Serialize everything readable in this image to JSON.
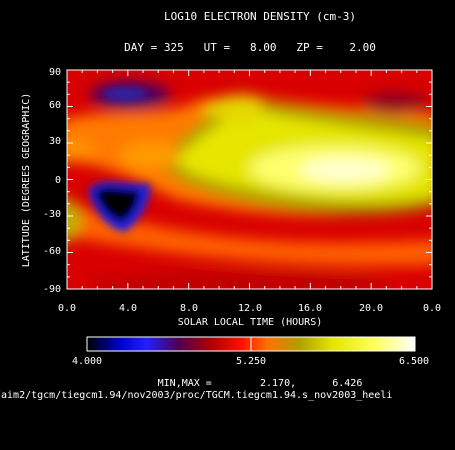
{
  "chart_data": {
    "type": "heatmap",
    "title": "LOG10 ELECTRON DENSITY (cm-3)",
    "subtitle": "DAY = 325   UT =   8.00   ZP =    2.00",
    "xlabel": "SOLAR LOCAL TIME (HOURS)",
    "ylabel": "LATITUDE (DEGREES GEOGRAPHIC)",
    "xlim": [
      0,
      24
    ],
    "ylim": [
      -90,
      90
    ],
    "x_ticks": [
      "0.0",
      "4.0",
      "8.0",
      "12.0",
      "16.0",
      "20.0",
      "0.0"
    ],
    "y_ticks": [
      "-90",
      "-60",
      "-30",
      "0",
      "30",
      "60",
      "90"
    ],
    "colorbar": {
      "min_label": "4.000",
      "mid_label": "5.250",
      "max_label": "6.500",
      "range": [
        4.0,
        6.5
      ],
      "stops": [
        "#000000",
        "#0000cc",
        "#2020ff",
        "#500050",
        "#b00000",
        "#ff1000",
        "#ff7000",
        "#b0a000",
        "#e6e600",
        "#ffff60",
        "#ffffff"
      ]
    },
    "min_max_text": "MIN,MAX =        2.170,      6.426",
    "data_min": 2.17,
    "data_max": 6.426,
    "features": [
      {
        "x": 3.5,
        "lat": -20,
        "value": 2.2
      },
      {
        "x": 5.0,
        "lat": 65,
        "value": 4.8
      },
      {
        "x": 21.0,
        "lat": 55,
        "value": 5.1
      },
      {
        "x": 17.0,
        "lat": 10,
        "value": 6.4
      },
      {
        "x": 10.0,
        "lat": 40,
        "value": 5.9
      },
      {
        "x": 14.0,
        "lat": -75,
        "value": 5.3
      }
    ]
  },
  "source_path": "/aim2/tgcm/tiegcm1.94/nov2003/proc/TGCM.tiegcm1.94.s_nov2003_heeli"
}
